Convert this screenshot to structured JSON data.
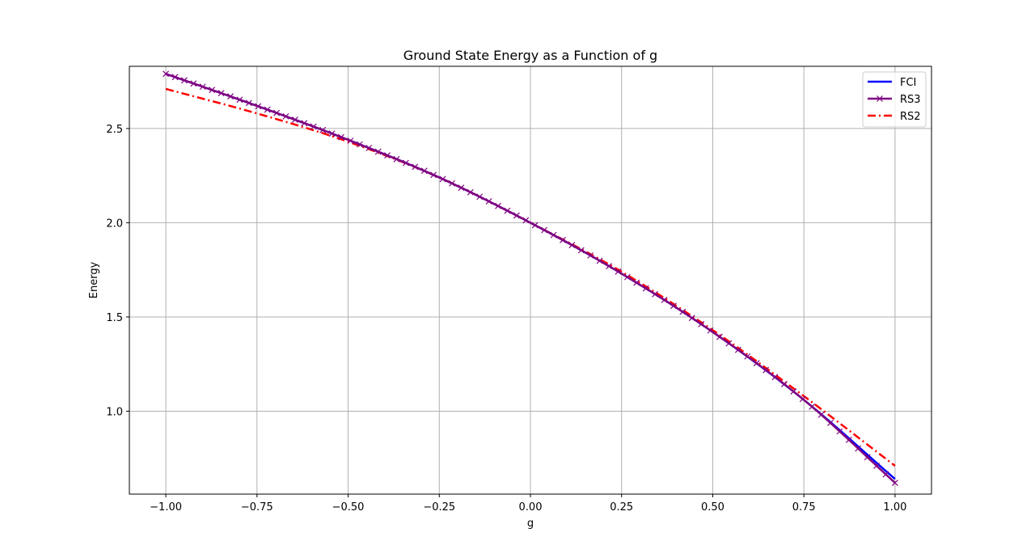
{
  "chart_data": {
    "type": "line",
    "title": "Ground State Energy as a Function of g",
    "xlabel": "g",
    "ylabel": "Energy",
    "xlim": [
      -1.1,
      1.1
    ],
    "ylim": [
      0.56,
      2.83
    ],
    "grid": true,
    "legend_position": "top-right",
    "x_ticks": [
      -1.0,
      -0.75,
      -0.5,
      -0.25,
      0.0,
      0.25,
      0.5,
      0.75,
      1.0
    ],
    "x_tick_labels": [
      "−1.00",
      "−0.75",
      "−0.50",
      "−0.25",
      "0.00",
      "0.25",
      "0.50",
      "0.75",
      "1.00"
    ],
    "y_ticks": [
      1.0,
      1.5,
      2.0,
      2.5
    ],
    "y_tick_labels": [
      "1.0",
      "1.5",
      "2.0",
      "2.5"
    ],
    "x": [
      -1.0,
      -0.75,
      -0.5,
      -0.25,
      0.0,
      0.25,
      0.5,
      0.75,
      1.0
    ],
    "series": [
      {
        "name": "FCI",
        "color": "#0000ff",
        "style": "solid",
        "marker": "none",
        "values": [
          2.79,
          2.62,
          2.44,
          2.24,
          2.0,
          1.73,
          1.42,
          1.06,
          0.64
        ]
      },
      {
        "name": "RS3",
        "color": "#800080",
        "style": "solid",
        "marker": "x",
        "marker_count": 80,
        "values": [
          2.79,
          2.62,
          2.44,
          2.24,
          2.0,
          1.73,
          1.42,
          1.06,
          0.62
        ]
      },
      {
        "name": "RS2",
        "color": "#ff0000",
        "style": "dashdot",
        "marker": "none",
        "values": [
          2.71,
          2.58,
          2.43,
          2.24,
          2.0,
          1.74,
          1.43,
          1.08,
          0.71
        ]
      }
    ]
  }
}
